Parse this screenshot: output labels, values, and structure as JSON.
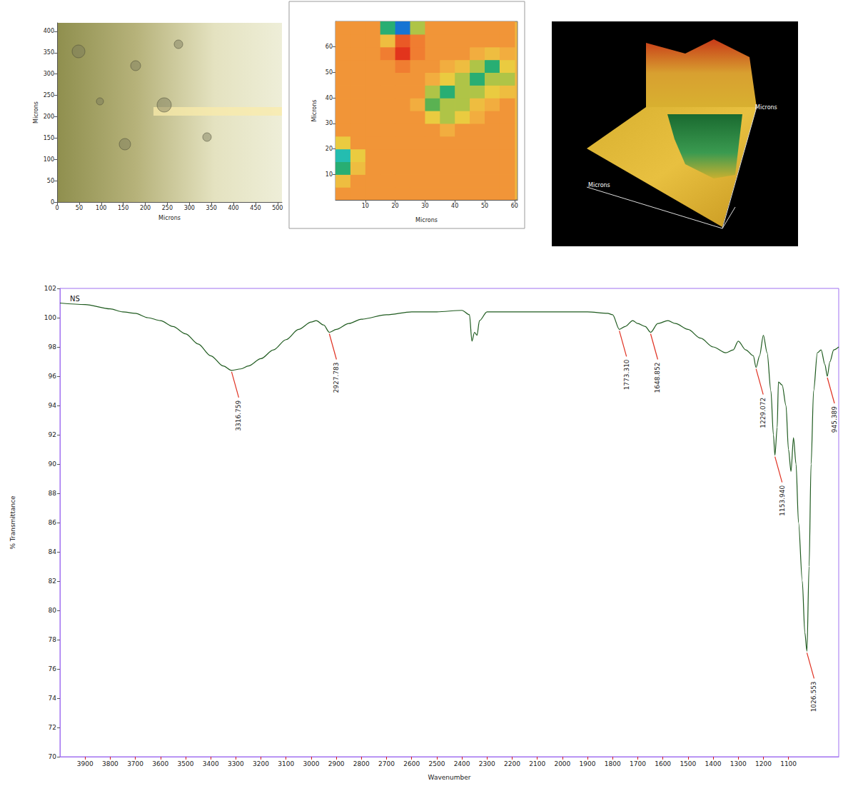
{
  "chart_data": [
    {
      "type": "image",
      "x_label": "Microns",
      "y_label": "Microns",
      "xlim": [
        0,
        510
      ],
      "xticks": [
        0,
        50,
        100,
        150,
        200,
        250,
        300,
        350,
        400,
        450,
        500
      ],
      "ylim": [
        0,
        420
      ],
      "yticks": [
        0,
        50,
        100,
        150,
        200,
        250,
        300,
        350,
        400
      ]
    },
    {
      "type": "heatmap",
      "x_label": "Microns",
      "y_label": "Microns",
      "xlim": [
        0,
        61
      ],
      "xticks": [
        10,
        20,
        30,
        40,
        50,
        60
      ],
      "ylim": [
        0,
        70
      ],
      "yticks": [
        10,
        20,
        30,
        40,
        50,
        60
      ],
      "x": [
        2.5,
        7.5,
        12.5,
        17.5,
        22.5,
        27.5,
        32.5,
        37.5,
        42.5,
        47.5,
        52.5,
        57.5
      ],
      "y": [
        2.5,
        7.5,
        12.5,
        17.5,
        22.5,
        27.5,
        32.5,
        37.5,
        42.5,
        47.5,
        52.5,
        57.5,
        62.5,
        67.5
      ],
      "z": [
        [
          5,
          5,
          5,
          5,
          5,
          5,
          5,
          5,
          5,
          5,
          5,
          5
        ],
        [
          4,
          5,
          5,
          5,
          5,
          5,
          5,
          5,
          5,
          5,
          5,
          5
        ],
        [
          2,
          4,
          5,
          5,
          5,
          5,
          5,
          5,
          5,
          5,
          5,
          5
        ],
        [
          1.5,
          3.5,
          5,
          5,
          5,
          5,
          5,
          5,
          5,
          5,
          5,
          5
        ],
        [
          3.5,
          5,
          5,
          5,
          5,
          5,
          5,
          5,
          5,
          5,
          5,
          5
        ],
        [
          5,
          5,
          5,
          5,
          5,
          5,
          5,
          4.5,
          5,
          5,
          5,
          5
        ],
        [
          5,
          5,
          5,
          5,
          5,
          5,
          3.5,
          3,
          3.5,
          4.5,
          5,
          5
        ],
        [
          5,
          5,
          5,
          5,
          5,
          4.5,
          2.5,
          3,
          3,
          4,
          4.5,
          5
        ],
        [
          5,
          5,
          5,
          5,
          5,
          5,
          3,
          2,
          3,
          3,
          3.5,
          4
        ],
        [
          5,
          5,
          5,
          5,
          5,
          5,
          4.5,
          3.5,
          3,
          2,
          3,
          3
        ],
        [
          5,
          5,
          5,
          5,
          5.5,
          5,
          5,
          4.5,
          4,
          3,
          2,
          3.5
        ],
        [
          5,
          5,
          5,
          5.5,
          6.5,
          5.5,
          5,
          5,
          5,
          4.5,
          4,
          4.5
        ],
        [
          5,
          5,
          5,
          4,
          6,
          5.5,
          5,
          5,
          5,
          5,
          5,
          5
        ],
        [
          5,
          5,
          5,
          2,
          0.5,
          3,
          5,
          5,
          5,
          5,
          5,
          5
        ]
      ],
      "value_range": [
        0,
        10
      ]
    },
    {
      "type": "surface",
      "x_label": "Microns",
      "y_label": "Microns"
    },
    {
      "type": "line",
      "legend": "top-left",
      "grid": false,
      "x_label": "Wavenumber",
      "y_label": "% Transmittance",
      "xlim": [
        4000,
        900
      ],
      "xticks": [
        3900,
        3800,
        3700,
        3600,
        3500,
        3400,
        3300,
        3200,
        3100,
        3000,
        2900,
        2800,
        2700,
        2600,
        2500,
        2400,
        2300,
        2200,
        2100,
        2000,
        1900,
        1800,
        1700,
        1600,
        1500,
        1400,
        1300,
        1200,
        1100
      ],
      "ylim": [
        70,
        102
      ],
      "yticks": [
        70,
        72,
        74,
        76,
        78,
        80,
        82,
        84,
        86,
        88,
        90,
        92,
        94,
        96,
        98,
        100,
        102
      ],
      "x": [
        4000,
        3900,
        3800,
        3750,
        3700,
        3650,
        3600,
        3550,
        3500,
        3450,
        3400,
        3350,
        3316.759,
        3280,
        3250,
        3200,
        3150,
        3100,
        3050,
        3000,
        2980,
        2950,
        2927.783,
        2900,
        2850,
        2800,
        2700,
        2600,
        2500,
        2400,
        2370,
        2360,
        2350,
        2340,
        2330,
        2300,
        2200,
        2100,
        2000,
        1900,
        1820,
        1800,
        1773.31,
        1750,
        1720,
        1700,
        1670,
        1648.852,
        1620,
        1580,
        1550,
        1500,
        1450,
        1400,
        1350,
        1320,
        1300,
        1270,
        1240,
        1229.072,
        1215,
        1200,
        1185,
        1170,
        1160,
        1153.94,
        1145,
        1140,
        1125,
        1110,
        1100,
        1090,
        1080,
        1070,
        1060,
        1045,
        1035,
        1026.553,
        1018,
        1010,
        1000,
        985,
        970,
        955,
        945.389,
        935,
        920,
        900
      ],
      "series": [
        {
          "name": "NS",
          "color": "#1e5a1e",
          "values": [
            101.0,
            100.9,
            100.6,
            100.4,
            100.3,
            100.0,
            99.8,
            99.4,
            98.9,
            98.2,
            97.4,
            96.7,
            96.4,
            96.5,
            96.7,
            97.2,
            97.8,
            98.5,
            99.2,
            99.7,
            99.8,
            99.5,
            99.0,
            99.2,
            99.6,
            99.9,
            100.2,
            100.4,
            100.4,
            100.5,
            100.2,
            98.4,
            99.0,
            98.8,
            99.8,
            100.4,
            100.4,
            100.4,
            100.4,
            100.4,
            100.3,
            100.2,
            99.2,
            99.4,
            99.8,
            99.6,
            99.4,
            99.0,
            99.6,
            99.8,
            99.6,
            99.2,
            98.6,
            98.0,
            97.6,
            97.8,
            98.4,
            97.8,
            97.4,
            96.6,
            97.4,
            98.8,
            97.6,
            95.0,
            92.0,
            90.6,
            92.5,
            95.6,
            95.4,
            94.0,
            91.0,
            89.5,
            91.8,
            90.0,
            86.0,
            82.0,
            78.5,
            77.2,
            83.0,
            90.0,
            95.0,
            97.6,
            97.8,
            96.8,
            96.0,
            97.0,
            97.8,
            98.0
          ]
        }
      ],
      "annotations": [
        {
          "x": 3316.759,
          "label": "3316.759"
        },
        {
          "x": 2927.783,
          "label": "2927.783"
        },
        {
          "x": 1773.31,
          "label": "1773.310"
        },
        {
          "x": 1648.852,
          "label": "1648.852"
        },
        {
          "x": 1229.072,
          "label": "1229.072"
        },
        {
          "x": 1153.94,
          "label": "1153.940"
        },
        {
          "x": 1026.553,
          "label": "1026.553"
        },
        {
          "x": 945.389,
          "label": "945.389"
        }
      ]
    }
  ]
}
